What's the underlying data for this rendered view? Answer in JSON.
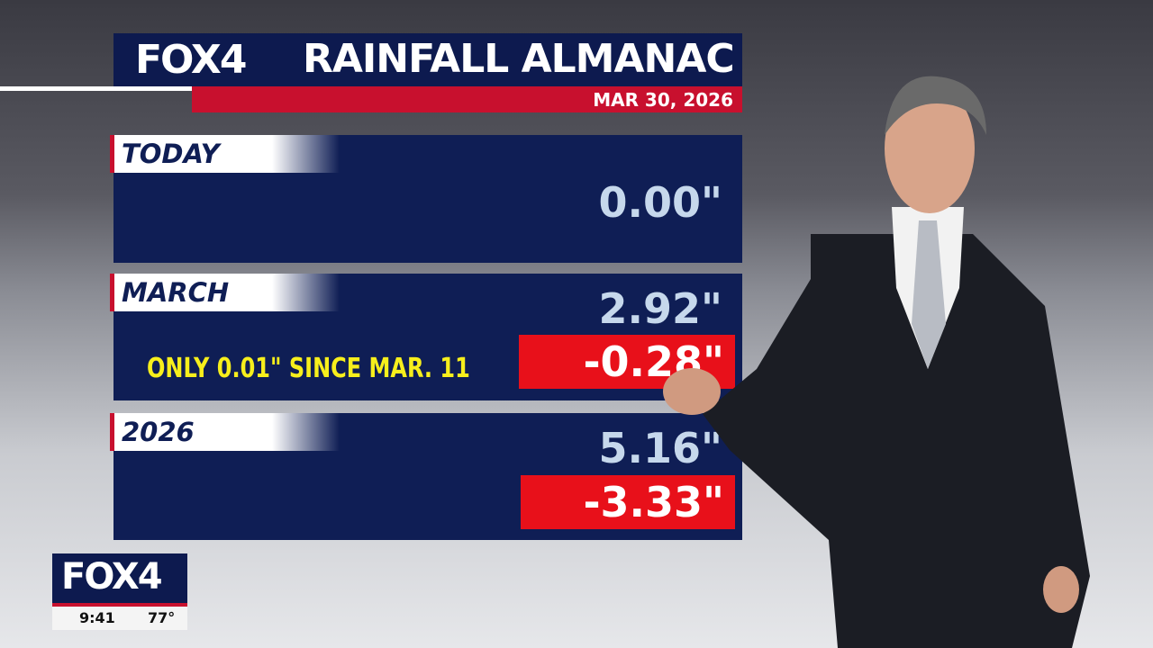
{
  "header": {
    "logo": "FOX4",
    "title": "RAINFALL ALMANAC",
    "date": "MAR 30, 2026"
  },
  "sections": [
    {
      "label": "TODAY",
      "total": "0.00\""
    },
    {
      "label": "MARCH",
      "total": "2.92\"",
      "departure": "-0.28\"",
      "note": "ONLY 0.01\" SINCE MAR. 11"
    },
    {
      "label": "2026",
      "total": "5.16\"",
      "departure": "-3.33\""
    }
  ],
  "bug": {
    "logo": "FOX4",
    "time": "9:41",
    "temp": "77°"
  }
}
